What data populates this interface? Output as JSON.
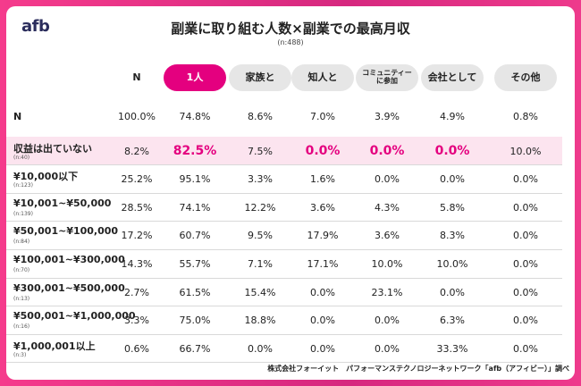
{
  "logo": "afb",
  "header": {
    "title": "副業に取り組む人数×副業での最高月収",
    "subtitle": "(n:488)"
  },
  "table": {
    "columns": [
      "N",
      "1人",
      "家族と",
      "知人と",
      "コミュニティー\nに参加",
      "会社として",
      "その他"
    ],
    "rows": [
      {
        "label": "N",
        "cells": [
          "100.0%",
          "74.8%",
          "8.6%",
          "7.0%",
          "3.9%",
          "4.9%",
          "0.8%"
        ]
      },
      {
        "label": "収益は出ていない",
        "n": "(n:40)",
        "cells": [
          "8.2%",
          "82.5%",
          "7.5%",
          "0.0%",
          "0.0%",
          "0.0%",
          "10.0%"
        ]
      },
      {
        "label": "¥10,000以下",
        "n": "(n:123)",
        "cells": [
          "25.2%",
          "95.1%",
          "3.3%",
          "1.6%",
          "0.0%",
          "0.0%",
          "0.0%"
        ]
      },
      {
        "label": "¥10,001~¥50,000",
        "n": "(n:139)",
        "cells": [
          "28.5%",
          "74.1%",
          "12.2%",
          "3.6%",
          "4.3%",
          "5.8%",
          "0.0%"
        ]
      },
      {
        "label": "¥50,001~¥100,000",
        "n": "(n:84)",
        "cells": [
          "17.2%",
          "60.7%",
          "9.5%",
          "17.9%",
          "3.6%",
          "8.3%",
          "0.0%"
        ]
      },
      {
        "label": "¥100,001~¥300,000",
        "n": "(n:70)",
        "cells": [
          "14.3%",
          "55.7%",
          "7.1%",
          "17.1%",
          "10.0%",
          "10.0%",
          "0.0%"
        ]
      },
      {
        "label": "¥300,001~¥500,000",
        "n": "(n:13)",
        "cells": [
          "2.7%",
          "61.5%",
          "15.4%",
          "0.0%",
          "23.1%",
          "0.0%",
          "0.0%"
        ]
      },
      {
        "label": "¥500,001~¥1,000,000",
        "n": "(n:16)",
        "cells": [
          "3.3%",
          "75.0%",
          "18.8%",
          "0.0%",
          "0.0%",
          "6.3%",
          "0.0%"
        ]
      },
      {
        "label": "¥1,000,001以上",
        "n": "(n:3)",
        "cells": [
          "0.6%",
          "66.7%",
          "0.0%",
          "0.0%",
          "0.0%",
          "33.3%",
          "0.0%"
        ]
      }
    ]
  },
  "footer": "株式会社フォーイット　パフォーマンステクノロジーネットワーク「afb（アフィビー）」調べ"
}
